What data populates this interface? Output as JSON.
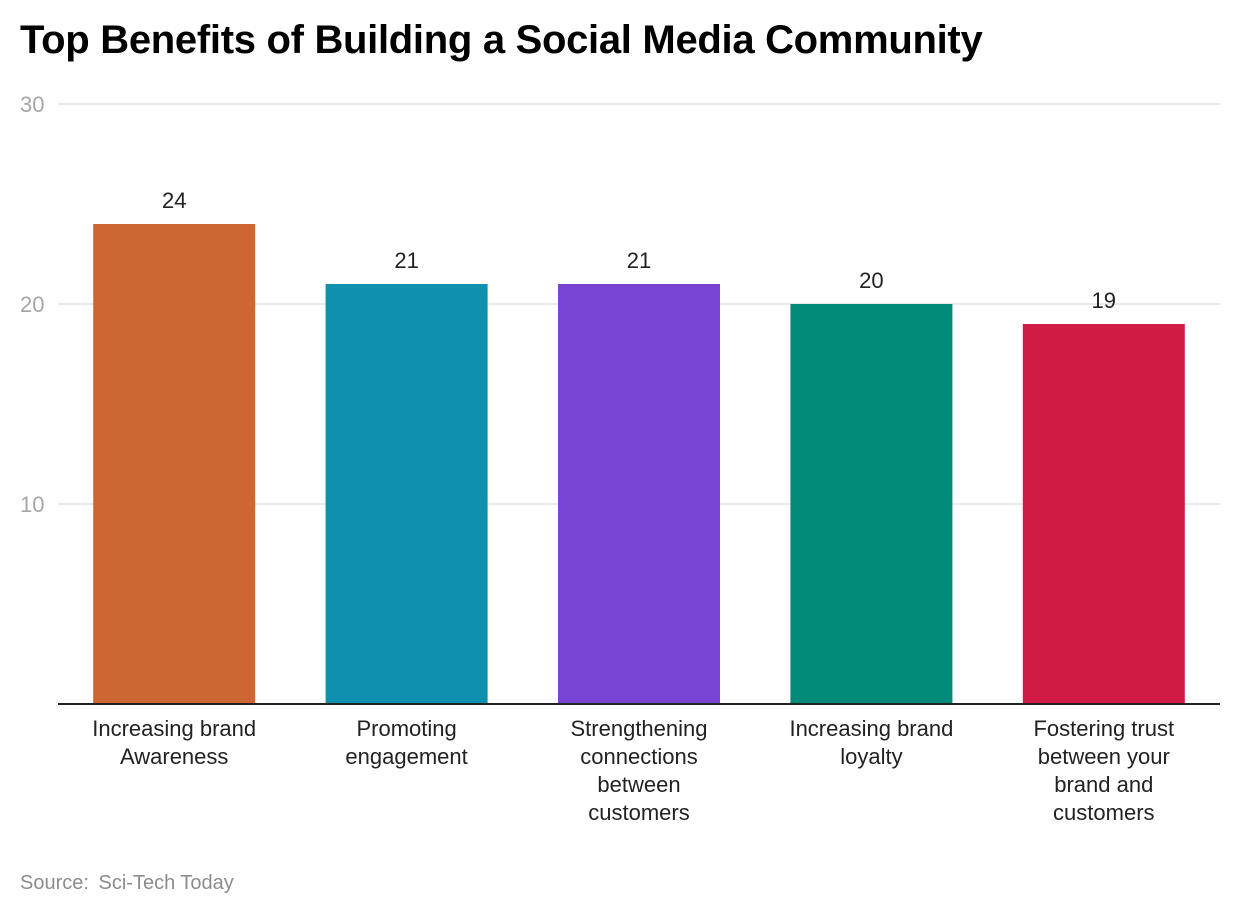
{
  "title": "Top Benefits of Building a Social Media Community",
  "source": {
    "label": "Source:",
    "value": "Sci-Tech Today"
  },
  "chart_data": {
    "type": "bar",
    "categories": [
      [
        "Increasing brand",
        "Awareness"
      ],
      [
        "Promoting",
        "engagement"
      ],
      [
        "Strengthening",
        "connections",
        "between",
        "customers"
      ],
      [
        "Increasing brand",
        "loyalty"
      ],
      [
        "Fostering trust",
        "between your",
        "brand and",
        "customers"
      ]
    ],
    "values": [
      24,
      21,
      21,
      20,
      19
    ],
    "colors": [
      "#cc6633",
      "#0f90ae",
      "#7744d4",
      "#008a78",
      "#d01b46"
    ],
    "ylim": [
      0,
      30
    ],
    "yticks": [
      10,
      20,
      30
    ],
    "grid": true,
    "legend": false,
    "data_labels": true,
    "xlabel": "",
    "ylabel": ""
  }
}
